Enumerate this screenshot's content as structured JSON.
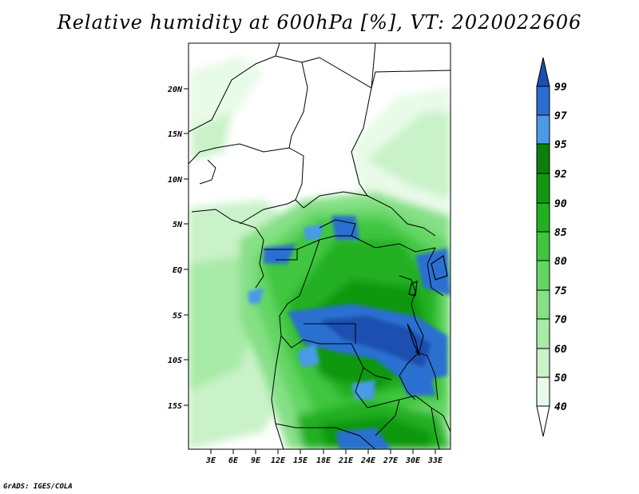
{
  "title": "Relative humidity at 600hPa [%], VT: 2020022606",
  "credit": "GrADS: IGES/COLA",
  "map": {
    "lon_range": [
      0,
      35
    ],
    "lat_range": [
      -20,
      25
    ],
    "lat_ticks": [
      "20N",
      "15N",
      "10N",
      "5N",
      "EQ",
      "5S",
      "10S",
      "15S"
    ],
    "lon_ticks": [
      "3E",
      "6E",
      "9E",
      "12E",
      "15E",
      "18E",
      "21E",
      "24E",
      "27E",
      "30E",
      "33E"
    ],
    "colors": {
      "green_40": "#e8fae8",
      "green_50": "#c9f2c9",
      "green_60": "#a8eaa8",
      "green_70": "#86e086",
      "green_75": "#64d564",
      "green_80": "#3fc63f",
      "green_85": "#20b020",
      "green_90": "#119811",
      "green_92": "#0a800a",
      "blue_95": "#4a9ae8",
      "blue_97": "#2a6fd0",
      "blue_99": "#1a4fb0"
    }
  },
  "colorbar": {
    "labels": [
      "99",
      "97",
      "95",
      "92",
      "90",
      "85",
      "80",
      "75",
      "70",
      "60",
      "50",
      "40"
    ]
  }
}
